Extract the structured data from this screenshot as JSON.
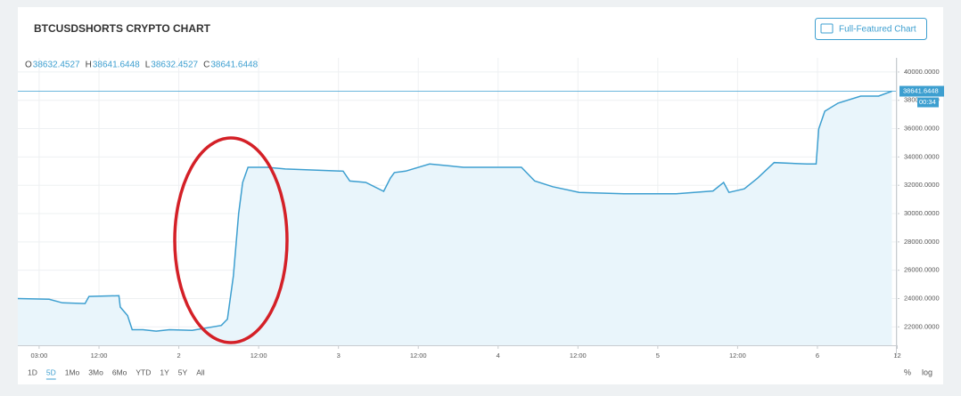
{
  "chart_data": {
    "type": "line",
    "title": "BTCUSDSHORTS CRYPTO CHART",
    "button": "Full-Featured Chart",
    "ohlc": [
      {
        "label": "O",
        "value": 38632.4527
      },
      {
        "label": "H",
        "value": 38641.6448
      },
      {
        "label": "L",
        "value": 38632.4527
      },
      {
        "label": "C",
        "value": 38641.6448
      }
    ],
    "x": [
      -0.2,
      4.5,
      6.5,
      9.9,
      10.5,
      15,
      15.2,
      16.3,
      17,
      18.6,
      20.6,
      22.6,
      26,
      30.4,
      31.3,
      32.2,
      33,
      33.6,
      34.4,
      37.3,
      40,
      48.7,
      49.7,
      52.1,
      54.8,
      55.8,
      56.4,
      58.1,
      61.7,
      66.8,
      75.5,
      77.5,
      80.2,
      84.2,
      90.9,
      98.8,
      104.3,
      105.9,
      106.7,
      109,
      111,
      113.5,
      118.4,
      119.8,
      120.2,
      121.1,
      123.1,
      126.5,
      129.2,
      131.2
    ],
    "series": [
      {
        "color": "#3d9fd0",
        "values": [
          24000,
          23950,
          23700,
          23650,
          24150,
          24200,
          23400,
          22800,
          21800,
          21800,
          21700,
          21800,
          21750,
          22100,
          22550,
          25600,
          30000,
          32200,
          33270,
          33270,
          33150,
          33000,
          32300,
          32200,
          31570,
          32500,
          32900,
          33000,
          33500,
          33270,
          33270,
          32300,
          31900,
          31500,
          31400,
          31400,
          31600,
          32200,
          31500,
          31750,
          32500,
          33600,
          33500,
          33500,
          35980,
          37230,
          37800,
          38300,
          38300,
          38641.6448
        ]
      }
    ],
    "last_price": 38641.6448,
    "countdown": "00:34",
    "xlim": [
      -0.2,
      131.8
    ],
    "xticks": [
      {
        "value": 3,
        "label": "03:00"
      },
      {
        "value": 12,
        "label": "12:00"
      },
      {
        "value": 24,
        "label": "2"
      },
      {
        "value": 36,
        "label": "12:00"
      },
      {
        "value": 48,
        "label": "3"
      },
      {
        "value": 60,
        "label": "12:00"
      },
      {
        "value": 72,
        "label": "4"
      },
      {
        "value": 84,
        "label": "12:00"
      },
      {
        "value": 96,
        "label": "5"
      },
      {
        "value": 108,
        "label": "12:00"
      },
      {
        "value": 120,
        "label": "6"
      },
      {
        "value": 132,
        "label": "12"
      }
    ],
    "ylim": [
      20700,
      41000
    ],
    "yticks": [
      {
        "value": 22000,
        "label": "22000.0000"
      },
      {
        "value": 24000,
        "label": "24000.0000"
      },
      {
        "value": 26000,
        "label": "26000.0000"
      },
      {
        "value": 28000,
        "label": "28000.0000"
      },
      {
        "value": 30000,
        "label": "30000.0000"
      },
      {
        "value": 32000,
        "label": "32000.0000"
      },
      {
        "value": 34000,
        "label": "34000.0000"
      },
      {
        "value": 36000,
        "label": "36000.0000"
      },
      {
        "value": 38000,
        "label": "38000.0000"
      },
      {
        "value": 40000,
        "label": "40000.0000"
      }
    ],
    "grid": true,
    "range_buttons": [
      "1D",
      "5D",
      "1Mo",
      "3Mo",
      "6Mo",
      "YTD",
      "1Y",
      "5Y",
      "All"
    ],
    "selected_range": 1,
    "scale_buttons": [
      "%",
      "log"
    ]
  }
}
